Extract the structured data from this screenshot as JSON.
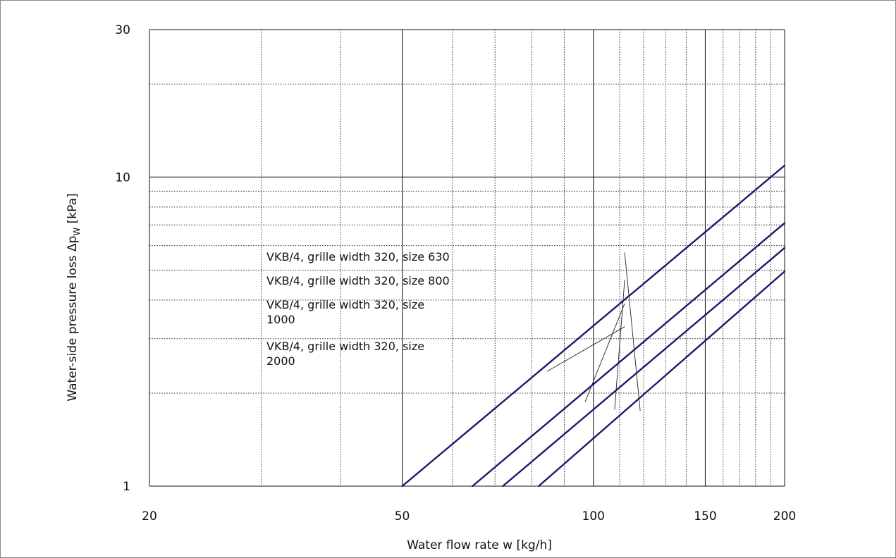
{
  "chart_data": {
    "type": "line",
    "x_scale": "log",
    "y_scale": "log",
    "xlim": [
      20,
      200
    ],
    "ylim": [
      1,
      30
    ],
    "xlabel": "Water flow rate  w  [kg/h]",
    "ylabel": {
      "pre": "Water-side pressure loss   Δp",
      "sub": "W",
      "post": " [kPa]"
    },
    "x_ticks": [
      {
        "value": 20,
        "label": "20"
      },
      {
        "value": 50,
        "label": "50"
      },
      {
        "value": 100,
        "label": "100"
      },
      {
        "value": 150,
        "label": "150"
      },
      {
        "value": 200,
        "label": "200"
      }
    ],
    "y_ticks": [
      {
        "value": 1,
        "label": "1"
      },
      {
        "value": 10,
        "label": "10"
      },
      {
        "value": 30,
        "label": "30"
      }
    ],
    "x_major_grid": [
      50,
      100,
      150
    ],
    "x_minor_grid": [
      30,
      40,
      60,
      70,
      80,
      90,
      110,
      120,
      130,
      140,
      160,
      170,
      180,
      190
    ],
    "y_major_grid": [
      10
    ],
    "y_minor_grid": [
      2,
      3,
      4,
      5,
      6,
      7,
      8,
      9,
      20
    ],
    "line_color": "#1a1a6e",
    "series": [
      {
        "name": "VKB/4, grille width 320, size 630",
        "x": [
          50,
          200
        ],
        "y": [
          1.0,
          10.9
        ]
      },
      {
        "name": "VKB/4, grille width 320, size 800",
        "x": [
          64.5,
          200
        ],
        "y": [
          1.0,
          7.1
        ]
      },
      {
        "name": "VKB/4, grille width 320, size 1000",
        "x": [
          72,
          200
        ],
        "y": [
          1.0,
          5.9
        ]
      },
      {
        "name": "VKB/4, grille width 320, size 2000",
        "x": [
          82,
          200
        ],
        "y": [
          1.0,
          4.95
        ]
      }
    ],
    "annotations": [
      {
        "lines": [
          "VKB/4, grille width 320, size 630"
        ],
        "leader_from": [
          112,
          5.7
        ],
        "leader_to": [
          118.5,
          1.75
        ]
      },
      {
        "lines": [
          "VKB/4, grille width 320, size 800"
        ],
        "leader_from": [
          112,
          4.65
        ],
        "leader_to": [
          108,
          1.77
        ]
      },
      {
        "lines": [
          "VKB/4, grille width 320, size",
          "1000"
        ],
        "leader_from": [
          112,
          3.9
        ],
        "leader_to": [
          97,
          1.87
        ]
      },
      {
        "lines": [
          "VKB/4, grille width 320, size",
          "2000"
        ],
        "leader_from": [
          112,
          3.28
        ],
        "leader_to": [
          84.5,
          2.35
        ]
      }
    ]
  }
}
